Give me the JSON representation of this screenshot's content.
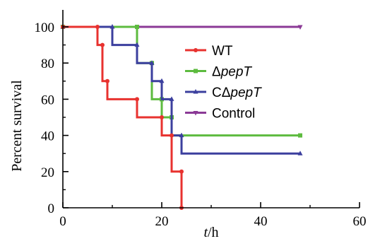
{
  "chart_data": {
    "type": "line",
    "step": true,
    "xlabel": {
      "italic": "t",
      "rest": "/h"
    },
    "ylabel": "Percent survival",
    "xlim": [
      0,
      60
    ],
    "ylim": [
      0,
      100
    ],
    "xticks": [
      0,
      20,
      40,
      60
    ],
    "yticks": [
      0,
      20,
      40,
      60,
      80,
      100
    ],
    "grid": false,
    "legend_position": "center-right",
    "series": [
      {
        "name": "WT",
        "name_parts": {
          "prefix": "WT",
          "italic": "",
          "suffix": ""
        },
        "color": "#e8322f",
        "marker": "circle",
        "points": [
          [
            0,
            100
          ],
          [
            7,
            100
          ],
          [
            7,
            90
          ],
          [
            8,
            90
          ],
          [
            8,
            70
          ],
          [
            9,
            70
          ],
          [
            9,
            60
          ],
          [
            15,
            60
          ],
          [
            15,
            50
          ],
          [
            20,
            50
          ],
          [
            20,
            40
          ],
          [
            22,
            40
          ],
          [
            22,
            20
          ],
          [
            24,
            20
          ],
          [
            24,
            0
          ]
        ]
      },
      {
        "name": "ΔpepT",
        "name_parts": {
          "prefix": "Δ",
          "italic": "pepT",
          "suffix": ""
        },
        "color": "#5dbb3f",
        "marker": "square",
        "points": [
          [
            0,
            100
          ],
          [
            15,
            100
          ],
          [
            15,
            80
          ],
          [
            18,
            80
          ],
          [
            18,
            60
          ],
          [
            20,
            60
          ],
          [
            20,
            50
          ],
          [
            22,
            50
          ],
          [
            22,
            40
          ],
          [
            48,
            40
          ]
        ]
      },
      {
        "name": "CΔpepT",
        "name_parts": {
          "prefix": "CΔ",
          "italic": "pepT",
          "suffix": ""
        },
        "color": "#3b3f9e",
        "marker": "triangle",
        "points": [
          [
            0,
            100
          ],
          [
            10,
            100
          ],
          [
            10,
            90
          ],
          [
            15,
            90
          ],
          [
            15,
            80
          ],
          [
            18,
            80
          ],
          [
            18,
            70
          ],
          [
            20,
            70
          ],
          [
            20,
            60
          ],
          [
            22,
            60
          ],
          [
            22,
            40
          ],
          [
            24,
            40
          ],
          [
            24,
            30
          ],
          [
            48,
            30
          ]
        ]
      },
      {
        "name": "Control",
        "name_parts": {
          "prefix": "Control",
          "italic": "",
          "suffix": ""
        },
        "color": "#8b3a96",
        "marker": "triangle-down",
        "points": [
          [
            0,
            100
          ],
          [
            48,
            100
          ]
        ]
      }
    ]
  }
}
